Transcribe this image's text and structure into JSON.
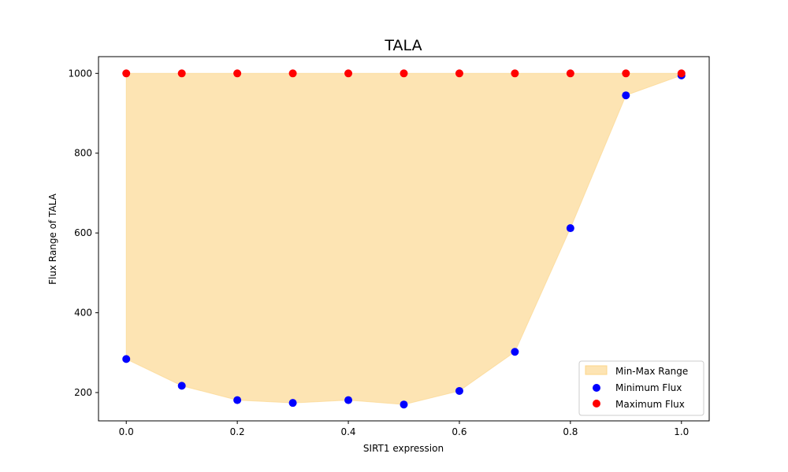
{
  "chart_data": {
    "type": "scatter",
    "title": "TALA",
    "xlabel": "SIRT1 expression",
    "ylabel": "Flux Range of TALA",
    "x": [
      0.0,
      0.1,
      0.2,
      0.3,
      0.4,
      0.5,
      0.6,
      0.7,
      0.8,
      0.9,
      1.0
    ],
    "series": [
      {
        "name": "Minimum Flux",
        "color": "#0000ff",
        "values": [
          284,
          217,
          181,
          174,
          181,
          170,
          204,
          302,
          612,
          945,
          995
        ]
      },
      {
        "name": "Maximum Flux",
        "color": "#ff0000",
        "values": [
          1000,
          1000,
          1000,
          1000,
          1000,
          1000,
          1000,
          1000,
          1000,
          1000,
          1000
        ]
      }
    ],
    "fill_between": {
      "name": "Min-Max Range",
      "color": "#fcd68a",
      "opacity": 0.65
    },
    "xlim": [
      -0.05,
      1.05
    ],
    "ylim": [
      129,
      1042
    ],
    "xticks": [
      "0.0",
      "0.2",
      "0.4",
      "0.6",
      "0.8",
      "1.0"
    ],
    "yticks": [
      "200",
      "400",
      "600",
      "800",
      "1000"
    ],
    "legend": "lower-right",
    "grid": false
  }
}
